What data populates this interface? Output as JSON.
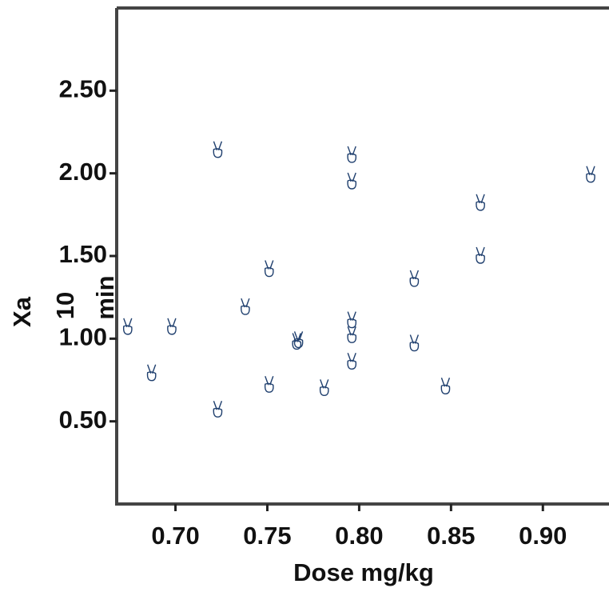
{
  "chart_data": {
    "type": "scatter",
    "x_label": "Dose mg/kg",
    "y_label_parts": [
      "Xa",
      "10",
      "min"
    ],
    "color": "#1f3f6e",
    "xlim": [
      0.668,
      0.936
    ],
    "ylim": [
      0.0,
      3.0
    ],
    "xticks": [
      {
        "value": 0.7,
        "label": "0.70"
      },
      {
        "value": 0.75,
        "label": "0.75"
      },
      {
        "value": 0.8,
        "label": "0.80"
      },
      {
        "value": 0.85,
        "label": "0.85"
      },
      {
        "value": 0.9,
        "label": "0.90"
      }
    ],
    "yticks": [
      {
        "value": 0.5,
        "label": "0.50"
      },
      {
        "value": 1.0,
        "label": "1.00"
      },
      {
        "value": 1.5,
        "label": "1.50"
      },
      {
        "value": 2.0,
        "label": "2.00"
      },
      {
        "value": 2.5,
        "label": "2.50"
      }
    ],
    "x": [
      0.674,
      0.687,
      0.698,
      0.723,
      0.723,
      0.738,
      0.751,
      0.751,
      0.766,
      0.767,
      0.781,
      0.796,
      0.796,
      0.796,
      0.796,
      0.796,
      0.83,
      0.83,
      0.847,
      0.866,
      0.866,
      0.926
    ],
    "y": [
      1.07,
      0.79,
      1.07,
      2.14,
      0.57,
      1.19,
      1.42,
      0.72,
      0.98,
      0.99,
      0.7,
      2.11,
      1.95,
      1.11,
      1.02,
      0.86,
      1.36,
      0.97,
      0.71,
      1.82,
      1.5,
      1.99
    ]
  }
}
